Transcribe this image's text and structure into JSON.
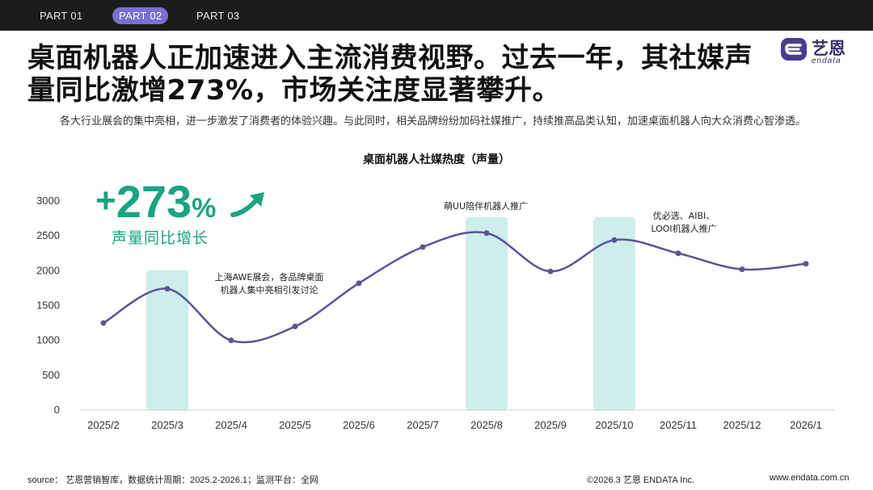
{
  "nav": {
    "tabs": [
      "PART 01",
      "PART 02",
      "PART 03"
    ],
    "active_index": 1
  },
  "headline": "桌面机器人正加速进入主流消费视野。过去一年，其社媒声量同比激增273%，市场关注度显著攀升。",
  "intro": "各大行业展会的集中亮相，进一步激发了消费者的体验兴趣。与此同时，相关品牌纷纷加码社媒推广，持续推高品类认知，加速桌面机器人向大众消费心智渗透。",
  "logo": {
    "name": "艺恩",
    "sub": "endata"
  },
  "kpi": {
    "plus": "+",
    "value": "273",
    "unit": "%",
    "label": "声量同比增长"
  },
  "colors": {
    "line": "#5b5496",
    "highlight": "#cdeeea",
    "accent": "#1aa382",
    "nav_active": "#7a6fd0"
  },
  "chart_data": {
    "type": "line",
    "title": "桌面机器人社媒热度（声量）",
    "categories": [
      "2025/2",
      "2025/3",
      "2025/4",
      "2025/5",
      "2025/6",
      "2025/7",
      "2025/8",
      "2025/9",
      "2025/10",
      "2025/11",
      "2025/12",
      "2026/1"
    ],
    "values": [
      1250,
      1740,
      1000,
      1200,
      1820,
      2340,
      2540,
      1990,
      2440,
      2250,
      2020,
      2100
    ],
    "ylim": [
      0,
      3000
    ],
    "yticks": [
      0,
      500,
      1000,
      1500,
      2000,
      2500,
      3000
    ],
    "xlabel": "",
    "ylabel": "",
    "highlighted_categories": [
      "2025/3",
      "2025/8",
      "2025/10"
    ],
    "annotations": [
      {
        "category": "2025/3",
        "lines": [
          "上海AWE展会，各品牌桌面",
          "机器人集中亮相引发讨论"
        ]
      },
      {
        "category": "2025/8",
        "lines": [
          "萌UU陪伴机器人推广"
        ]
      },
      {
        "category": "2025/10",
        "lines": [
          "优必选、AIBI、",
          "LOOI机器人推广"
        ]
      }
    ]
  },
  "footer": {
    "source": "source： 艺恩营销智库，数据统计周期：2025.2-2026.1；监测平台：全网",
    "copyright": "©2026.3  艺恩 ENDATA Inc.",
    "url": "www.endata.com.cn"
  }
}
